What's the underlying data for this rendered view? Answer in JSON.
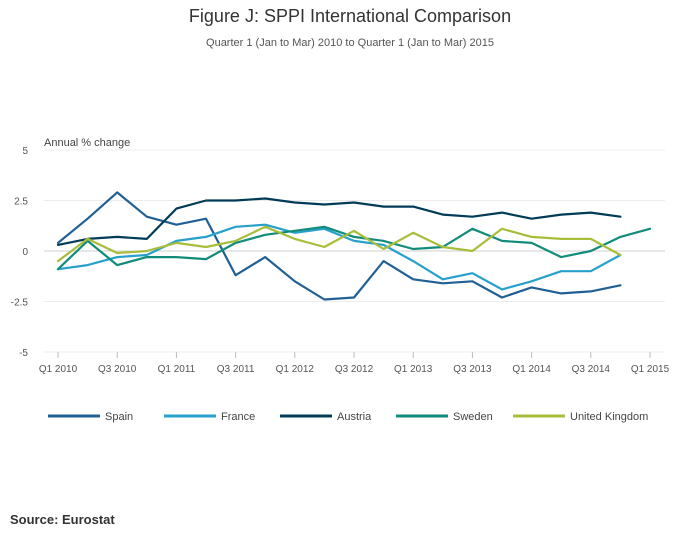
{
  "figure": {
    "title": "Figure J: SPPI International Comparison",
    "subtitle": "Quarter 1 (Jan to Mar) 2010 to Quarter 1 (Jan to Mar) 2015",
    "source": "Source: Eurostat"
  },
  "chart_data": {
    "type": "line",
    "ylabel": "Annual % change",
    "ylim": [
      -5,
      5
    ],
    "yticks": [
      5,
      2.5,
      0,
      -2.5,
      -5
    ],
    "ytick_labels": [
      "5",
      "2.5",
      "0",
      "-2.5",
      "-5"
    ],
    "quarters": [
      "Q1 2010",
      "Q2 2010",
      "Q3 2010",
      "Q4 2010",
      "Q1 2011",
      "Q2 2011",
      "Q3 2011",
      "Q4 2011",
      "Q1 2012",
      "Q2 2012",
      "Q3 2012",
      "Q4 2012",
      "Q1 2013",
      "Q2 2013",
      "Q3 2013",
      "Q4 2013",
      "Q1 2014",
      "Q2 2014",
      "Q3 2014",
      "Q4 2014",
      "Q1 2015"
    ],
    "xtick_labels": [
      "Q1 2010",
      "Q3 2010",
      "Q1 2011",
      "Q3 2011",
      "Q1 2012",
      "Q3 2012",
      "Q1 2013",
      "Q3 2013",
      "Q1 2014",
      "Q3 2014",
      "Q1 2015"
    ],
    "series": [
      {
        "name": "Spain",
        "color": "#206095",
        "values": [
          0.4,
          1.6,
          2.9,
          1.7,
          1.3,
          1.6,
          -1.2,
          -0.3,
          -1.5,
          -2.4,
          -2.3,
          -0.5,
          -1.4,
          -1.6,
          -1.5,
          -2.3,
          -1.8,
          -2.1,
          -2.0,
          -1.7,
          null
        ]
      },
      {
        "name": "France",
        "color": "#27a0cc",
        "values": [
          -0.9,
          -0.7,
          -0.3,
          -0.2,
          0.5,
          0.7,
          1.2,
          1.3,
          0.9,
          1.1,
          0.5,
          0.3,
          -0.5,
          -1.4,
          -1.1,
          -1.9,
          -1.5,
          -1.0,
          -1.0,
          -0.2,
          null
        ]
      },
      {
        "name": "Austria",
        "color": "#003c57",
        "values": [
          0.3,
          0.6,
          0.7,
          0.6,
          2.1,
          2.5,
          2.5,
          2.6,
          2.4,
          2.3,
          2.4,
          2.2,
          2.2,
          1.8,
          1.7,
          1.9,
          1.6,
          1.8,
          1.9,
          1.7,
          null
        ]
      },
      {
        "name": "Sweden",
        "color": "#118c7b",
        "values": [
          -0.9,
          0.5,
          -0.7,
          -0.3,
          -0.3,
          -0.4,
          0.4,
          0.8,
          1.0,
          1.2,
          0.7,
          0.5,
          0.1,
          0.2,
          1.1,
          0.5,
          0.4,
          -0.3,
          0.0,
          0.7,
          1.1
        ]
      },
      {
        "name": "United Kingdom",
        "color": "#a8bd3a",
        "values": [
          -0.5,
          0.6,
          -0.1,
          0.0,
          0.4,
          0.2,
          0.5,
          1.2,
          0.6,
          0.2,
          1.0,
          0.1,
          0.9,
          0.2,
          0.0,
          1.1,
          0.7,
          0.6,
          0.6,
          -0.2,
          null
        ]
      }
    ]
  }
}
